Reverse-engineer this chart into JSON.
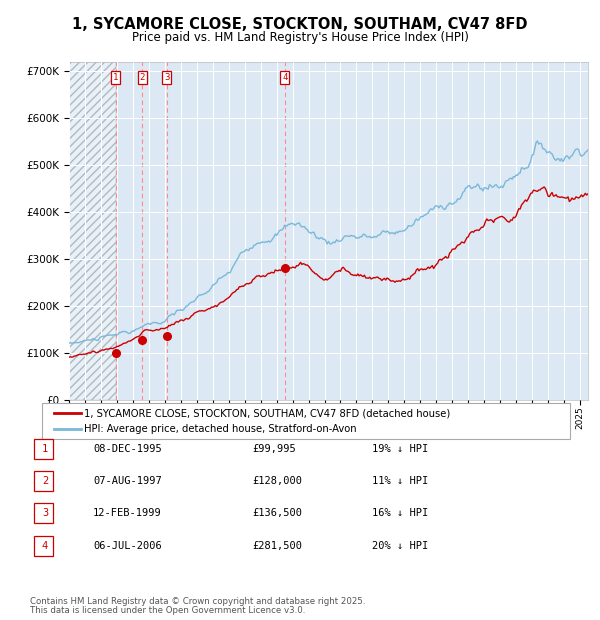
{
  "title": "1, SYCAMORE CLOSE, STOCKTON, SOUTHAM, CV47 8FD",
  "subtitle": "Price paid vs. HM Land Registry's House Price Index (HPI)",
  "legend_entry1": "1, SYCAMORE CLOSE, STOCKTON, SOUTHAM, CV47 8FD (detached house)",
  "legend_entry2": "HPI: Average price, detached house, Stratford-on-Avon",
  "footer1": "Contains HM Land Registry data © Crown copyright and database right 2025.",
  "footer2": "This data is licensed under the Open Government Licence v3.0.",
  "hpi_color": "#7ab8d9",
  "price_color": "#cc0000",
  "marker_color": "#cc0000",
  "background_color": "#dce9f5",
  "grid_color": "#ffffff",
  "vline_color": "#ff8888",
  "ylim": [
    0,
    720000
  ],
  "yticks": [
    0,
    100000,
    200000,
    300000,
    400000,
    500000,
    600000,
    700000
  ],
  "ytick_labels": [
    "£0",
    "£100K",
    "£200K",
    "£300K",
    "£400K",
    "£500K",
    "£600K",
    "£700K"
  ],
  "xlim_start": 1993.0,
  "xlim_end": 2025.5,
  "transactions": [
    {
      "num": 1,
      "date": "08-DEC-1995",
      "year": 1995.92,
      "price": 99995,
      "pct": "19%",
      "dir": "↓"
    },
    {
      "num": 2,
      "date": "07-AUG-1997",
      "year": 1997.6,
      "price": 128000,
      "pct": "11%",
      "dir": "↓"
    },
    {
      "num": 3,
      "date": "12-FEB-1999",
      "year": 1999.12,
      "price": 136500,
      "pct": "16%",
      "dir": "↓"
    },
    {
      "num": 4,
      "date": "06-JUL-2006",
      "year": 2006.51,
      "price": 281500,
      "pct": "20%",
      "dir": "↓"
    }
  ]
}
